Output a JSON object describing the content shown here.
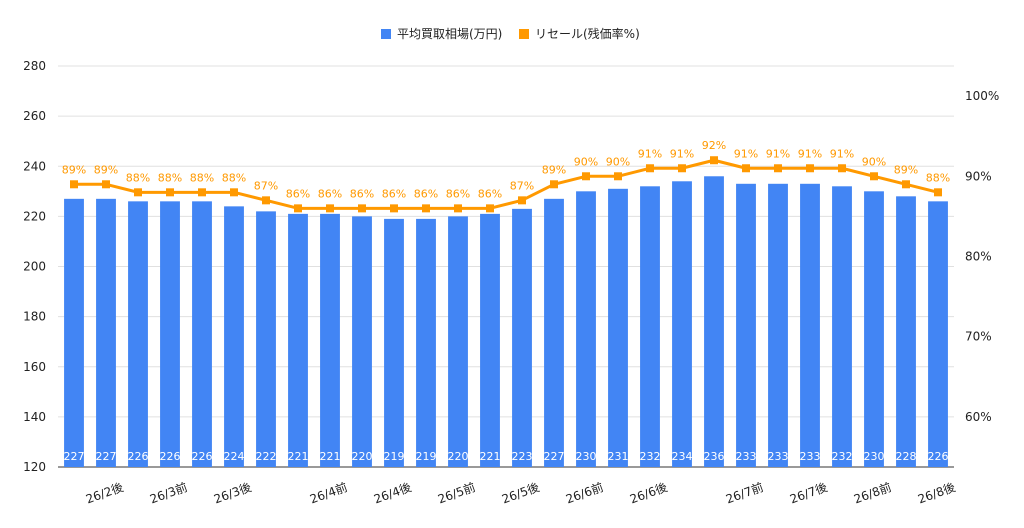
{
  "chart_data": {
    "type": "bar",
    "legend_position": "top-center",
    "grid": true,
    "colors": {
      "bar": "#4285f4",
      "line": "#ff9900",
      "grid": "#e0e0e0",
      "axis_text": "#222222",
      "line_label": "#ff9900",
      "bar_label": "#ffffff"
    },
    "categories": [
      "",
      "26/2後",
      "",
      "26/3前",
      "",
      "26/3後",
      "",
      "",
      "26/4前",
      "",
      "26/4後",
      "",
      "26/5前",
      "",
      "26/5後",
      "",
      "26/6前",
      "",
      "26/6後",
      "",
      "",
      "26/7前",
      "",
      "26/7後",
      "",
      "26/8前",
      "",
      "26/8後"
    ],
    "series": [
      {
        "name": "平均買取相場(万円)",
        "type": "bar",
        "axis": "left",
        "values": [
          227,
          227,
          226,
          226,
          226,
          224,
          222,
          221,
          221,
          220,
          219,
          219,
          220,
          221,
          223,
          227,
          230,
          231,
          232,
          234,
          236,
          233,
          233,
          233,
          232,
          230,
          228,
          226
        ],
        "labels": [
          "227",
          "227",
          "226",
          "226",
          "226",
          "224",
          "222",
          "221",
          "221",
          "220",
          "219",
          "219",
          "220",
          "221",
          "223",
          "227",
          "230",
          "231",
          "232",
          "234",
          "236",
          "233",
          "233",
          "233",
          "232",
          "230",
          "228",
          "226"
        ]
      },
      {
        "name": "リセール(残価率%)",
        "type": "line",
        "axis": "right",
        "values": [
          89,
          89,
          88,
          88,
          88,
          88,
          87,
          86,
          86,
          86,
          86,
          86,
          86,
          86,
          87,
          89,
          90,
          90,
          91,
          91,
          92,
          91,
          91,
          91,
          91,
          90,
          89,
          88
        ],
        "labels": [
          "89%",
          "89%",
          "88%",
          "88%",
          "88%",
          "88%",
          "87%",
          "86%",
          "86%",
          "86%",
          "86%",
          "86%",
          "86%",
          "86%",
          "87%",
          "89%",
          "90%",
          "90%",
          "91%",
          "91%",
          "92%",
          "91%",
          "91%",
          "91%",
          "91%",
          "90%",
          "89%",
          "88%"
        ]
      }
    ],
    "left_axis": {
      "ylim": [
        120,
        280
      ],
      "ticks": [
        "120",
        "140",
        "160",
        "180",
        "200",
        "220",
        "240",
        "260",
        "280"
      ]
    },
    "right_axis": {
      "ylim": [
        53.75,
        103.75
      ],
      "ticks": [
        "60%",
        "70%",
        "80%",
        "90%",
        "100%"
      ]
    }
  }
}
